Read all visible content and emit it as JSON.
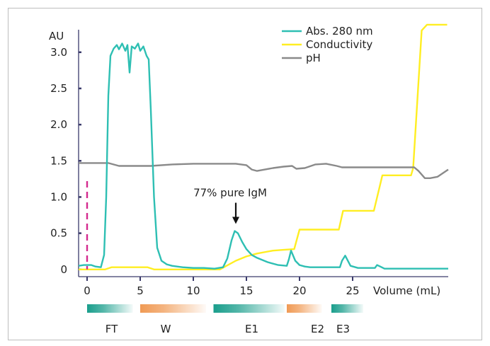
{
  "chart_data": {
    "type": "line",
    "xlabel": "Volume (mL)",
    "ylabel": "AU",
    "xlim": [
      -0.8,
      34
    ],
    "ylim": [
      -0.1,
      3.35
    ],
    "x_ticks": [
      0,
      5,
      10,
      15,
      20,
      25
    ],
    "y_ticks": [
      0,
      0.5,
      1.0,
      1.5,
      2.0,
      2.5,
      3.0
    ],
    "x_tick_labels": [
      "0",
      "5",
      "10",
      "15",
      "20",
      "25"
    ],
    "y_tick_labels": [
      "0",
      "0.5",
      "1.0",
      "1.5",
      "2.0",
      "2.5",
      "3.0"
    ],
    "grid": false,
    "legend": "top-right",
    "colors": {
      "abs": "#2ebfb3",
      "conductivity": "#ffee22",
      "ph": "#8a8a8a",
      "injection": "#d42a8e",
      "arrow": "#111111"
    },
    "series": [
      {
        "name": "Abs. 280 nm",
        "x": [
          -0.8,
          -0.3,
          0.4,
          0.8,
          1.3,
          1.6,
          1.8,
          2.0,
          2.2,
          2.5,
          2.8,
          3.0,
          3.3,
          3.6,
          3.8,
          4.0,
          4.2,
          4.5,
          4.8,
          5.0,
          5.3,
          5.6,
          5.8,
          6.0,
          6.3,
          6.6,
          7.0,
          7.5,
          8.0,
          9.0,
          10.0,
          11.0,
          12.0,
          12.8,
          13.2,
          13.6,
          13.9,
          14.2,
          14.6,
          15.0,
          15.5,
          16.0,
          17.0,
          18.0,
          18.8,
          19.0,
          19.2,
          19.6,
          20.0,
          20.5,
          21.0,
          22.0,
          23.0,
          23.8,
          24.0,
          24.3,
          24.8,
          25.5,
          26.5,
          27.1,
          27.3,
          27.6,
          28.0,
          29.0,
          30.0,
          31.0,
          32.0,
          33.0,
          34.0
        ],
        "values": [
          0.05,
          0.06,
          0.06,
          0.04,
          0.03,
          0.2,
          1.0,
          2.4,
          2.95,
          3.05,
          3.1,
          3.04,
          3.12,
          3.02,
          3.1,
          2.72,
          3.08,
          3.05,
          3.12,
          3.02,
          3.08,
          2.95,
          2.9,
          2.2,
          1.0,
          0.3,
          0.12,
          0.07,
          0.05,
          0.03,
          0.02,
          0.02,
          0.01,
          0.03,
          0.15,
          0.4,
          0.53,
          0.5,
          0.38,
          0.28,
          0.2,
          0.16,
          0.1,
          0.06,
          0.05,
          0.14,
          0.26,
          0.12,
          0.06,
          0.04,
          0.03,
          0.03,
          0.03,
          0.03,
          0.12,
          0.19,
          0.05,
          0.02,
          0.02,
          0.02,
          0.06,
          0.04,
          0.01,
          0.01,
          0.01,
          0.01,
          0.01,
          0.01,
          0.01
        ]
      },
      {
        "name": "Conductivity",
        "x": [
          -0.8,
          1.7,
          2.3,
          5.7,
          6.3,
          12.5,
          13.0,
          14.0,
          15.0,
          16.0,
          17.5,
          18.5,
          19.5,
          20.0,
          22.0,
          23.7,
          24.1,
          27.0,
          27.8,
          28.2,
          30.5,
          30.7,
          31.5,
          32.0,
          33.9
        ],
        "values": [
          0.0,
          0.0,
          0.03,
          0.03,
          0.0,
          0.0,
          0.04,
          0.12,
          0.18,
          0.22,
          0.26,
          0.27,
          0.28,
          0.55,
          0.55,
          0.55,
          0.81,
          0.81,
          1.3,
          1.3,
          1.3,
          1.4,
          3.3,
          3.38,
          3.38
        ]
      },
      {
        "name": "pH",
        "x": [
          -0.8,
          1.5,
          2.0,
          3.0,
          5.0,
          6.0,
          8.0,
          10.0,
          12.0,
          14.0,
          15.0,
          15.5,
          16.0,
          17.5,
          18.5,
          19.3,
          19.7,
          20.5,
          21.5,
          22.5,
          23.5,
          24.0,
          24.5,
          25.5,
          27.0,
          28.0,
          29.0,
          30.0,
          30.8,
          31.2,
          31.8,
          32.3,
          33.0,
          34.0
        ],
        "values": [
          1.47,
          1.47,
          1.47,
          1.43,
          1.43,
          1.43,
          1.45,
          1.46,
          1.46,
          1.46,
          1.44,
          1.38,
          1.36,
          1.4,
          1.42,
          1.43,
          1.39,
          1.4,
          1.45,
          1.46,
          1.43,
          1.41,
          1.41,
          1.41,
          1.41,
          1.41,
          1.41,
          1.41,
          1.41,
          1.36,
          1.26,
          1.26,
          1.28,
          1.38
        ]
      }
    ],
    "injection_line": {
      "x": 0,
      "y_from": 0.0,
      "y_to": 1.22
    },
    "annotations": [
      {
        "text": "77% pure IgM",
        "x": 14,
        "y": 0.53
      }
    ],
    "fraction_bars": [
      {
        "label": "FT",
        "x0": 0,
        "x1": 4.3,
        "color": "#1a9e8c",
        "label_x": 2.3
      },
      {
        "label": "W",
        "x0": 5.0,
        "x1": 11.2,
        "color": "#f09a54",
        "label_x": 7.4
      },
      {
        "label": "E1",
        "x0": 11.9,
        "x1": 18.6,
        "color": "#1a9e8c",
        "label_x": 15.5
      },
      {
        "label": "E2",
        "x0": 18.8,
        "x1": 22.1,
        "color": "#f09a54",
        "label_x": 21.7
      },
      {
        "label": "E3",
        "x0": 23.0,
        "x1": 26.0,
        "color": "#1a9e8c",
        "label_x": 24.1
      }
    ]
  }
}
